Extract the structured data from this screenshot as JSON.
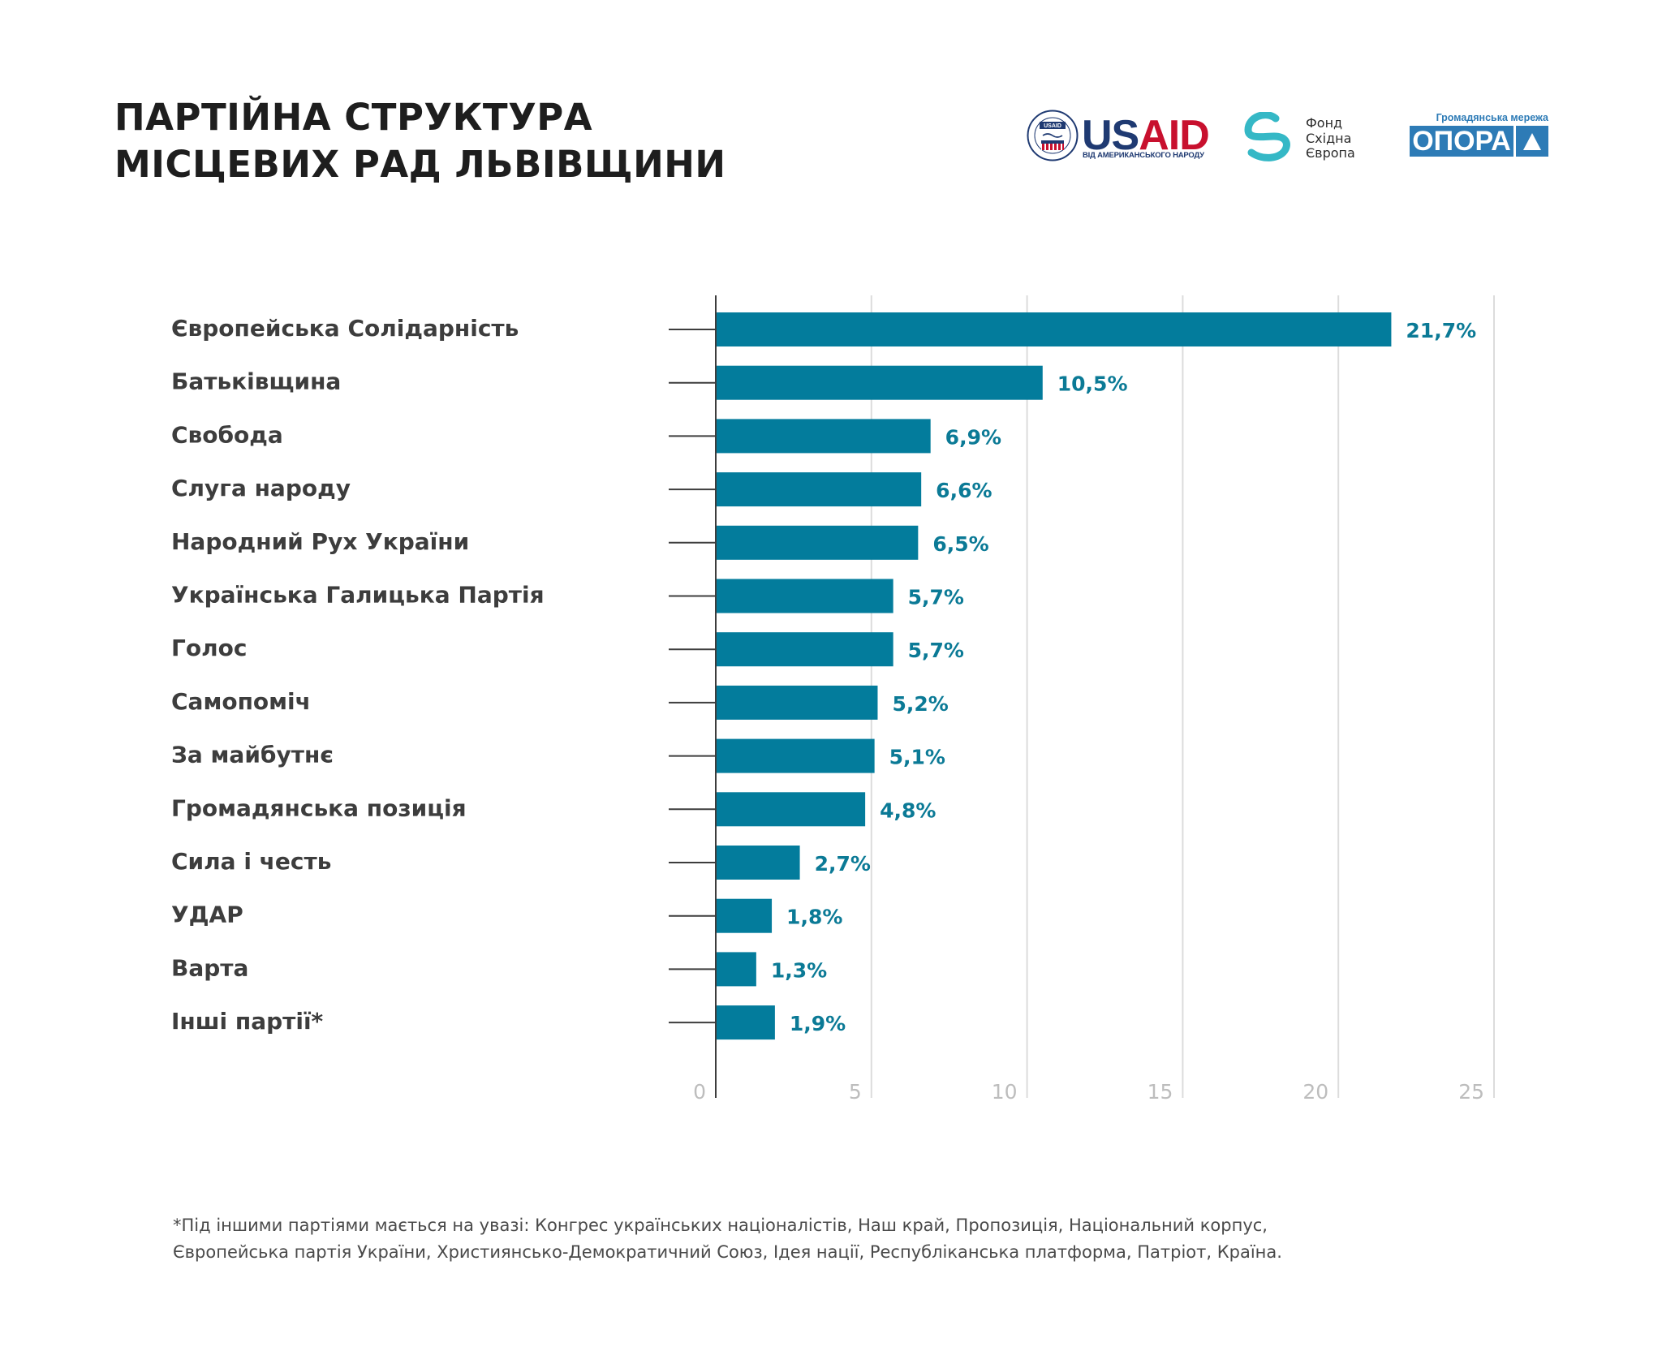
{
  "header": {
    "title_lines": [
      "ПАРТІЙНА СТРУКТУРА",
      "МІСЦЕВИХ РАД ЛЬВІВЩИНИ"
    ]
  },
  "logos": {
    "usaid": {
      "seal_label": "USAID",
      "word_us": "US",
      "word_aid": "AID",
      "subtitle": "ВІД АМЕРИКАНСЬКОГО НАРОДУ",
      "color_navy": "#1f3a72",
      "color_red": "#c8102e"
    },
    "east_europe_foundation": {
      "lines": [
        "Фонд",
        "Східна",
        "Європа"
      ],
      "color": "#35b8c6"
    },
    "opora": {
      "subtitle": "Громадянська мережа",
      "name": "ОПОРА",
      "color": "#2d7bb6"
    }
  },
  "chart_data": {
    "type": "bar",
    "orientation": "horizontal",
    "title": "ПАРТІЙНА СТРУКТУРА МІСЦЕВИХ РАД ЛЬВІВЩИНИ",
    "xlabel": "",
    "ylabel": "",
    "categories": [
      "Європейська Солідарність",
      "Батьківщина",
      "Свобода",
      "Слуга народу",
      "Народний Рух України",
      "Українська Галицька Партія",
      "Голос",
      "Самопоміч",
      "За майбутнє",
      "Громадянська позиція",
      "Сила і честь",
      "УДАР",
      "Варта",
      "Інші партії*"
    ],
    "values": [
      21.7,
      10.5,
      6.9,
      6.6,
      6.5,
      5.7,
      5.7,
      5.2,
      5.1,
      4.8,
      2.7,
      1.8,
      1.3,
      1.9
    ],
    "value_labels": [
      "21,7%",
      "10,5%",
      "6,9%",
      "6,6%",
      "6,5%",
      "5,7%",
      "5,7%",
      "5,2%",
      "5,1%",
      "4,8%",
      "2,7%",
      "1,8%",
      "1,3%",
      "1,9%"
    ],
    "xlim": [
      0,
      25
    ],
    "xticks": [
      0,
      5,
      10,
      15,
      20,
      25
    ],
    "xtick_labels": [
      "0",
      "5",
      "10",
      "15",
      "20",
      "25"
    ],
    "grid": true,
    "legend": "none",
    "bar_color": "#037c9c",
    "value_label_color": "#0b7a96"
  },
  "footnote": {
    "lines": [
      "*Під іншими партіями мається на увазі: Конгрес українських націоналістів, Наш край, Пропозиція, Національний корпус,",
      "Європейська партія України, Християнсько-Демократичний Союз, Ідея нації, Республіканська платформа, Патріот, Країна."
    ]
  }
}
